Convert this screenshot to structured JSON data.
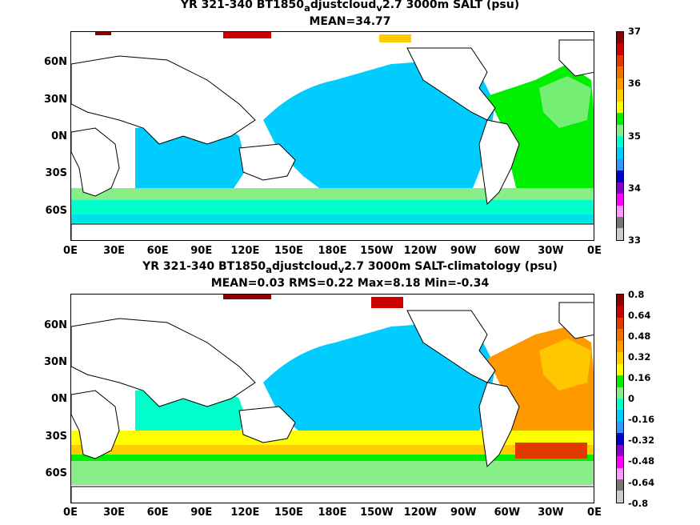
{
  "panel_top": {
    "title_line1_a": "YR 321-340 BT1850",
    "title_line1_sub1": "a",
    "title_line1_b": "djustcloud",
    "title_line1_sub2": "v",
    "title_line1_c": "2.7 3000m SALT (psu)",
    "title_line2": "MEAN=34.77",
    "lat_labels": [
      "60N",
      "30N",
      "0N",
      "30S",
      "60S"
    ],
    "lon_labels": [
      "0E",
      "30E",
      "60E",
      "90E",
      "120E",
      "150E",
      "180E",
      "150W",
      "120W",
      "90W",
      "60W",
      "30W",
      "0E"
    ],
    "colorbar_labels": [
      "37",
      "36",
      "35",
      "34",
      "33"
    ],
    "colorbar_colors": [
      "#8b0000",
      "#cc0000",
      "#e03a00",
      "#f07000",
      "#ff9900",
      "#ffcc00",
      "#ffff00",
      "#00ee00",
      "#88ee88",
      "#00ffcc",
      "#00ccff",
      "#3399ff",
      "#0000cc",
      "#8800cc",
      "#ff00ff",
      "#ff99ff",
      "#777777",
      "#cccccc"
    ]
  },
  "panel_bottom": {
    "title_line1_a": "YR 321-340 BT1850",
    "title_line1_sub1": "a",
    "title_line1_b": "djustcloud",
    "title_line1_sub2": "v",
    "title_line1_c": "2.7 3000m SALT-climatology (psu)",
    "title_line2": "MEAN=0.03   RMS=0.22   Max=8.18   Min=-0.34",
    "lat_labels": [
      "60N",
      "30N",
      "0N",
      "30S",
      "60S"
    ],
    "lon_labels": [
      "0E",
      "30E",
      "60E",
      "90E",
      "120E",
      "150E",
      "180E",
      "150W",
      "120W",
      "90W",
      "60W",
      "30W",
      "0E"
    ],
    "colorbar_labels": [
      "0.8",
      "0.64",
      "0.48",
      "0.32",
      "0.16",
      "0",
      "-0.16",
      "-0.32",
      "-0.48",
      "-0.64",
      "-0.8"
    ],
    "colorbar_colors": [
      "#8b0000",
      "#cc0000",
      "#e03a00",
      "#f07000",
      "#ff9900",
      "#ffcc00",
      "#ffff00",
      "#00ee00",
      "#88ee88",
      "#00ffcc",
      "#00ccff",
      "#3399ff",
      "#0000cc",
      "#8800cc",
      "#ff00ff",
      "#ff99ff",
      "#777777",
      "#cccccc"
    ]
  },
  "colors": {
    "land": "#ffffff",
    "coast": "#000000",
    "pacific_top": "#00ccff",
    "atlantic_top": "#00ee00",
    "southern_top": "#00ffcc",
    "pacific_bottom": "#00ccff",
    "atlantic_bottom": "#ff9900",
    "southern_yellow": "#ffff00",
    "southern_green": "#00ee00"
  }
}
